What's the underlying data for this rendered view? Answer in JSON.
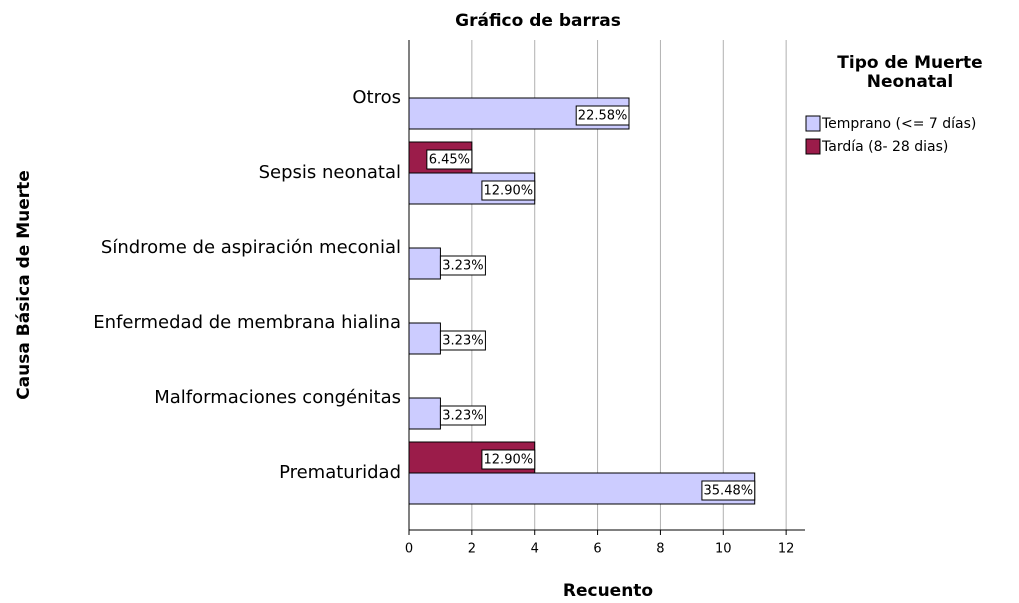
{
  "chart_data": {
    "type": "bar",
    "orientation": "horizontal",
    "title": "Gráfico de barras",
    "x_label": "Recuento",
    "y_label": "Causa Básica de Muerte",
    "legend_title": "Tipo de Muerte Neonatal",
    "categories": [
      "Otros",
      "Sepsis neonatal",
      "Síndrome de aspiración meconial",
      "Enfermedad de membrana hialina",
      "Malformaciones congénitas",
      "Prematuridad"
    ],
    "series": [
      {
        "name": "Tardía (8- 28 dias)",
        "color": "#9b1c4a",
        "values": [
          null,
          2,
          null,
          null,
          null,
          4
        ],
        "value_labels": [
          null,
          "6.45%",
          null,
          null,
          null,
          "12.90%"
        ]
      },
      {
        "name": "Temprano (<= 7 días)",
        "color": "#ccccff",
        "values": [
          7,
          4,
          1,
          1,
          1,
          11
        ],
        "value_labels": [
          "22.58%",
          "12.90%",
          "3.23%",
          "3.23%",
          "3.23%",
          "35.48%"
        ]
      }
    ],
    "legend_order": [
      1,
      0
    ],
    "xlim": [
      0,
      12.6
    ],
    "xticks": [
      0,
      2,
      4,
      6,
      8,
      10,
      12
    ],
    "grid": true
  }
}
